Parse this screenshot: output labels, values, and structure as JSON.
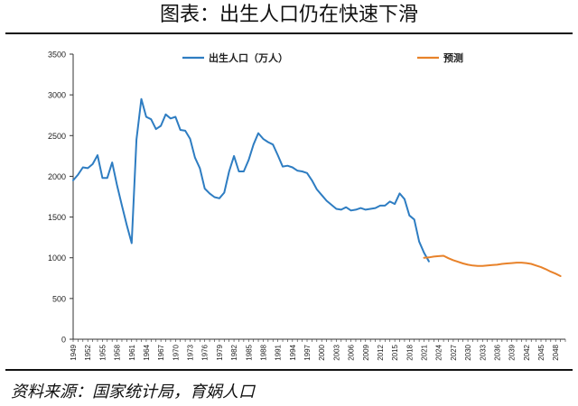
{
  "title": "图表：出生人口仍在快速下滑",
  "source": "资料来源：国家统计局，育娲人口",
  "colors": {
    "actual": "#2E7DC2",
    "forecast": "#E8822A"
  },
  "chart_data": {
    "type": "line",
    "xlim": [
      1949,
      2050
    ],
    "ylim": [
      0,
      3500
    ],
    "yticks": [
      0,
      500,
      1000,
      1500,
      2000,
      2500,
      3000,
      3500
    ],
    "xtick_labels": [
      "1949",
      "1952",
      "1955",
      "1958",
      "1961",
      "1964",
      "1967",
      "1970",
      "1973",
      "1976",
      "1979",
      "1982",
      "1985",
      "1988",
      "1991",
      "1994",
      "1997",
      "2000",
      "2003",
      "2006",
      "2009",
      "2012",
      "2015",
      "2018",
      "2021",
      "2024",
      "2027",
      "2030",
      "2033",
      "2036",
      "2039",
      "2042",
      "2045",
      "2048"
    ],
    "legend_position": "top",
    "grid": false,
    "series": [
      {
        "name": "出生人口（万人）",
        "color": "#2E7DC2",
        "x": [
          1949,
          1950,
          1951,
          1952,
          1953,
          1954,
          1955,
          1956,
          1957,
          1958,
          1959,
          1960,
          1961,
          1962,
          1963,
          1964,
          1965,
          1966,
          1967,
          1968,
          1969,
          1970,
          1971,
          1972,
          1973,
          1974,
          1975,
          1976,
          1977,
          1978,
          1979,
          1980,
          1981,
          1982,
          1983,
          1984,
          1985,
          1986,
          1987,
          1988,
          1989,
          1990,
          1991,
          1992,
          1993,
          1994,
          1995,
          1996,
          1997,
          1998,
          1999,
          2000,
          2001,
          2002,
          2003,
          2004,
          2005,
          2006,
          2007,
          2008,
          2009,
          2010,
          2011,
          2012,
          2013,
          2014,
          2015,
          2016,
          2017,
          2018,
          2019,
          2020,
          2021,
          2022
        ],
        "values": [
          1950,
          2020,
          2110,
          2100,
          2150,
          2260,
          1980,
          1980,
          2170,
          1890,
          1640,
          1400,
          1180,
          2450,
          2950,
          2730,
          2700,
          2580,
          2620,
          2760,
          2710,
          2730,
          2570,
          2560,
          2460,
          2230,
          2100,
          1850,
          1790,
          1745,
          1730,
          1800,
          2060,
          2250,
          2060,
          2060,
          2200,
          2390,
          2530,
          2460,
          2420,
          2390,
          2260,
          2120,
          2130,
          2110,
          2070,
          2060,
          2040,
          1950,
          1840,
          1770,
          1700,
          1650,
          1600,
          1590,
          1620,
          1580,
          1590,
          1610,
          1590,
          1600,
          1610,
          1640,
          1640,
          1690,
          1660,
          1790,
          1720,
          1520,
          1470,
          1200,
          1062,
          956
        ]
      },
      {
        "name": "预测",
        "color": "#E8822A",
        "x": [
          2021,
          2022,
          2023,
          2024,
          2025,
          2026,
          2027,
          2028,
          2029,
          2030,
          2031,
          2032,
          2033,
          2034,
          2035,
          2036,
          2037,
          2038,
          2039,
          2040,
          2041,
          2042,
          2043,
          2044,
          2045,
          2046,
          2047,
          2048,
          2049
        ],
        "values": [
          1000,
          1005,
          1015,
          1020,
          1025,
          995,
          970,
          950,
          930,
          915,
          905,
          900,
          900,
          905,
          910,
          915,
          925,
          930,
          935,
          940,
          940,
          935,
          925,
          905,
          885,
          860,
          830,
          805,
          775
        ]
      }
    ]
  }
}
